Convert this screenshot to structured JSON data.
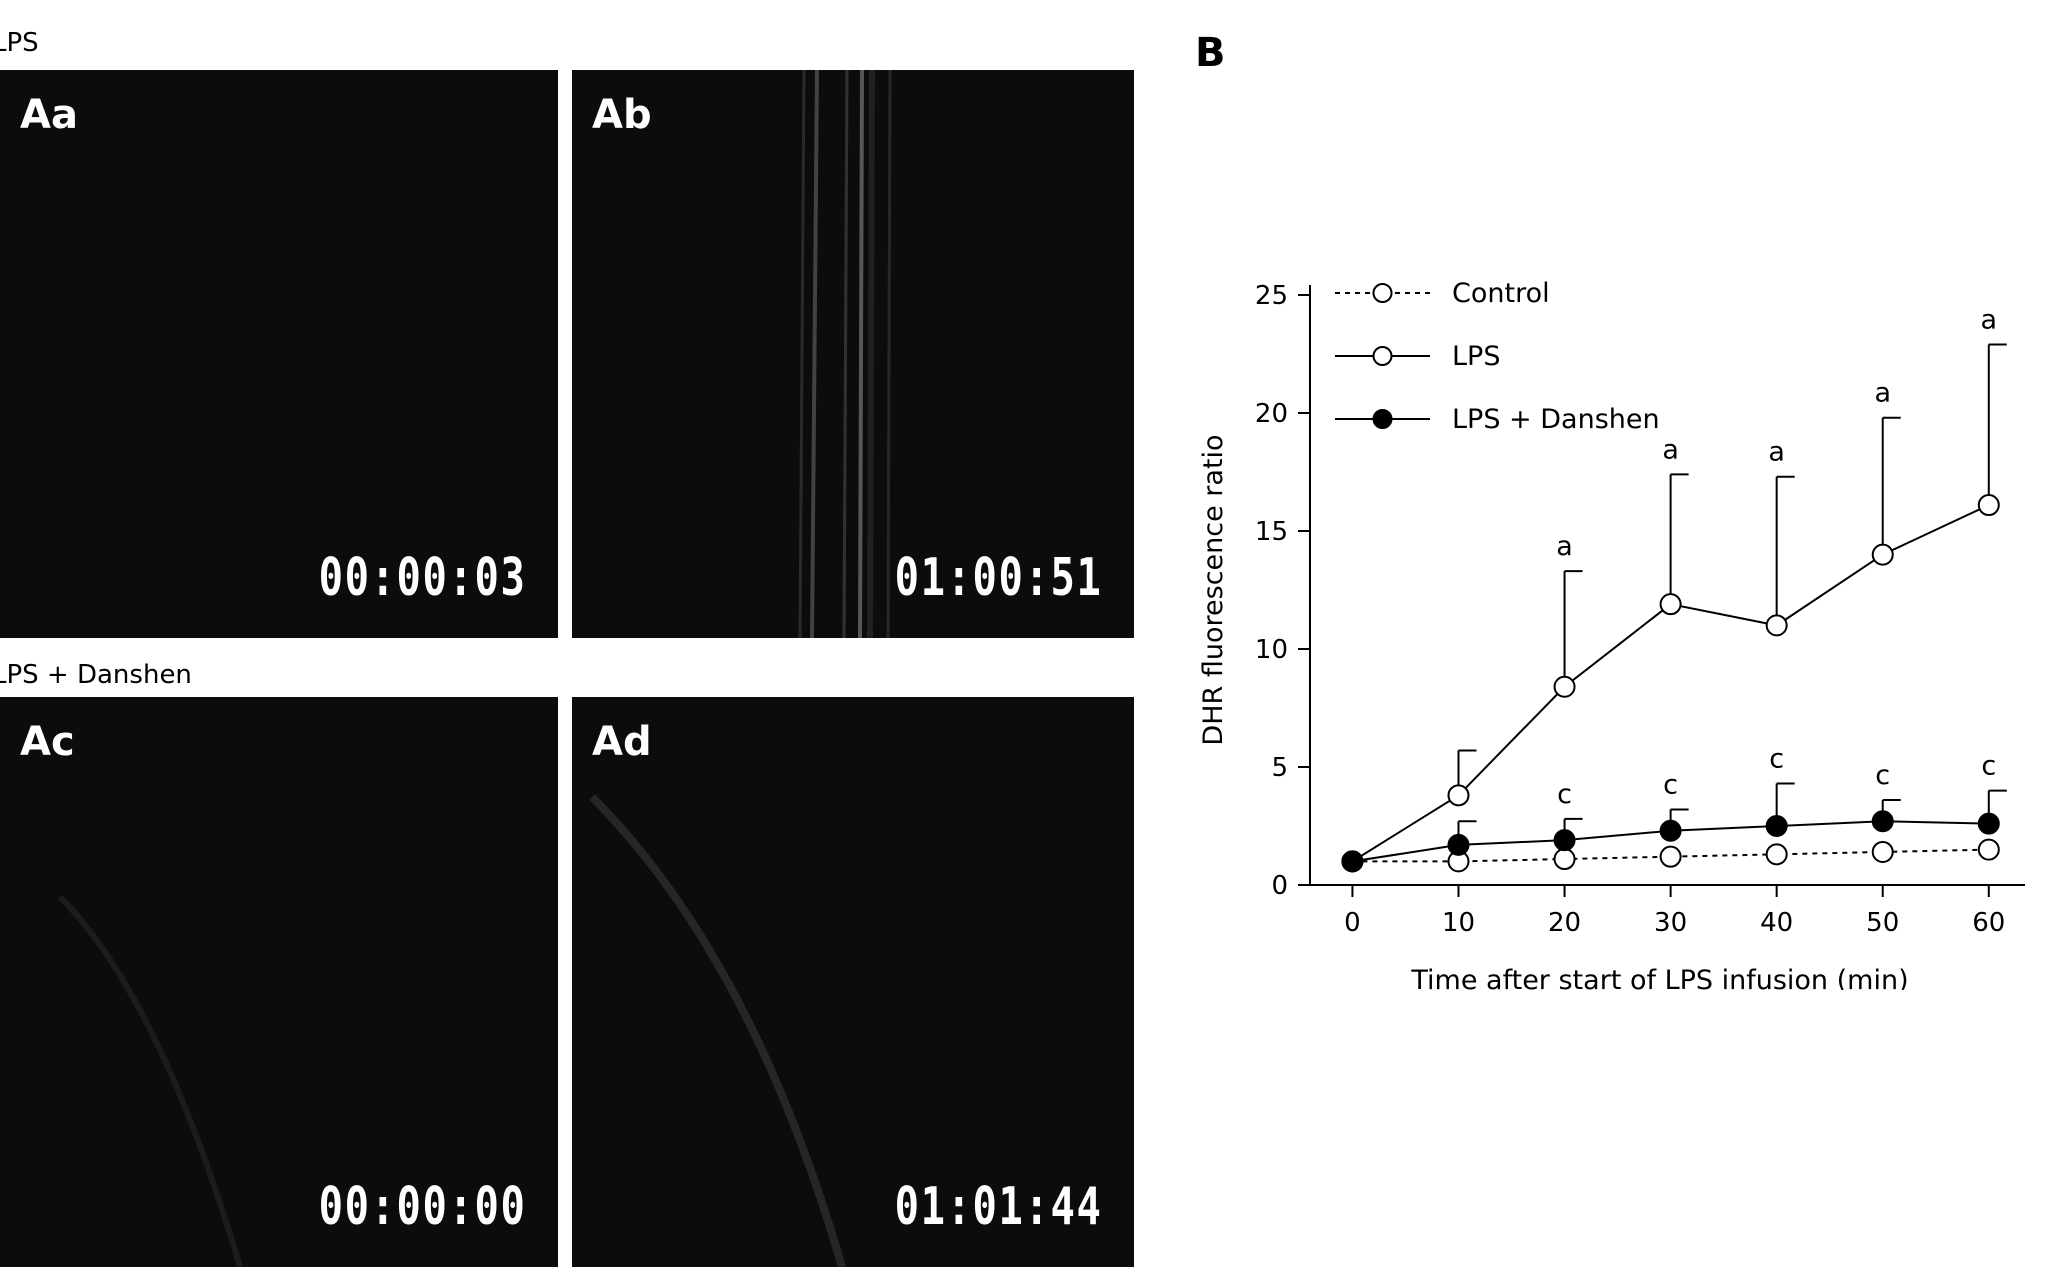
{
  "panels": {
    "top_group_label": "LPS",
    "bottom_group_label": "LPS + Danshen",
    "items": [
      {
        "label": "Aa",
        "timestamp": "00:00:03"
      },
      {
        "label": "Ab",
        "timestamp": "01:00:51"
      },
      {
        "label": "Ac",
        "timestamp": "00:00:00"
      },
      {
        "label": "Ad",
        "timestamp": "01:01:44"
      }
    ]
  },
  "chart_panel_label": "B",
  "chart_data": {
    "type": "line",
    "title": "",
    "xlabel": "Time after start of LPS infusion (min)",
    "ylabel": "DHR fluorescence ratio",
    "x": [
      0,
      10,
      20,
      30,
      40,
      50,
      60
    ],
    "xlim": [
      -4,
      62
    ],
    "ylim": [
      0,
      25
    ],
    "xticks": [
      0,
      10,
      20,
      30,
      40,
      50,
      60
    ],
    "yticks": [
      0,
      5,
      10,
      15,
      20,
      25
    ],
    "legend_position": "top-left",
    "series": [
      {
        "name": "Control",
        "marker": "open-circle",
        "line": "dashed",
        "values": [
          1.0,
          1.0,
          1.1,
          1.2,
          1.3,
          1.4,
          1.5
        ],
        "errors": [
          0,
          0,
          0,
          0,
          0,
          0,
          0
        ],
        "sig": [
          "",
          "",
          "",
          "",
          "",
          "",
          ""
        ]
      },
      {
        "name": "LPS",
        "marker": "open-circle",
        "line": "solid",
        "values": [
          1.0,
          3.8,
          8.4,
          11.9,
          11.0,
          14.0,
          16.1
        ],
        "errors": [
          0,
          1.9,
          4.9,
          5.5,
          6.3,
          5.8,
          6.8
        ],
        "sig": [
          "",
          "",
          "a",
          "a",
          "a",
          "a",
          "a"
        ]
      },
      {
        "name": "LPS + Danshen",
        "marker": "filled-circle",
        "line": "solid",
        "values": [
          1.0,
          1.7,
          1.9,
          2.3,
          2.5,
          2.7,
          2.6
        ],
        "errors": [
          0,
          1.0,
          0.9,
          0.9,
          1.8,
          0.9,
          1.4
        ],
        "sig": [
          "",
          "",
          "c",
          "c",
          "c",
          "c",
          "c"
        ]
      }
    ]
  }
}
